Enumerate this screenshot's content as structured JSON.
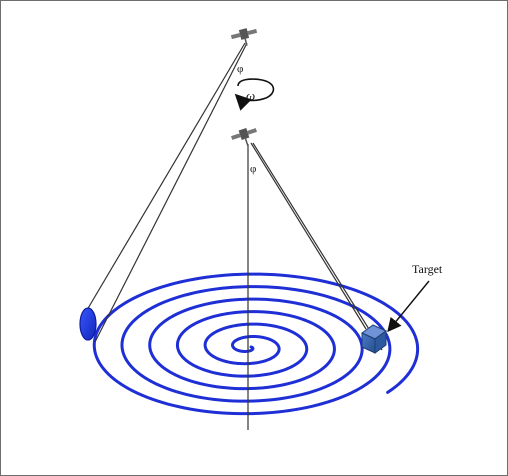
{
  "labels": {
    "phi_upper": "φ",
    "phi_lower": "φ",
    "omega": "ω",
    "target": "Target"
  },
  "icons": {
    "upper_satellite": "satellite-icon",
    "lower_satellite": "satellite-icon",
    "target": "cube-icon",
    "footprint": "ellipse-icon",
    "rotation": "circular-arrow-icon"
  },
  "colors": {
    "spiral": "#1f2fd6",
    "footprint_fill": "#1428d8",
    "target_fill": "#2f5fa8",
    "line": "#333333",
    "border": "#6e6e6e",
    "background": "#ffffff"
  }
}
